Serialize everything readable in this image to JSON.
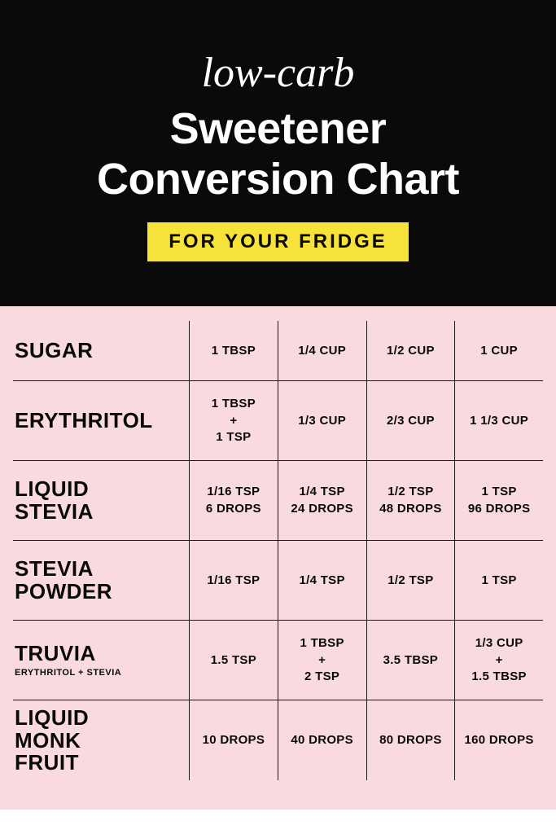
{
  "header": {
    "script_text": "low-carb",
    "title_line1": "Sweetener",
    "title_line2": "Conversion Chart",
    "badge": "FOR YOUR FRIDGE"
  },
  "colors": {
    "header_bg": "#0a0a0a",
    "header_text": "#ffffff",
    "badge_bg": "#f7e23a",
    "badge_text": "#0a0a0a",
    "chart_bg": "#f8dadf",
    "chart_text": "#0a0a0a",
    "border": "#1a1a1a"
  },
  "table": {
    "rows": [
      {
        "label": "SUGAR",
        "sublabel": null,
        "cells": [
          [
            "1 TBSP"
          ],
          [
            "1/4 CUP"
          ],
          [
            "1/2 CUP"
          ],
          [
            "1 CUP"
          ]
        ]
      },
      {
        "label": "ERYTHRITOL",
        "sublabel": null,
        "cells": [
          [
            "1 TBSP",
            "+",
            "1 TSP"
          ],
          [
            "1/3 CUP"
          ],
          [
            "2/3 CUP"
          ],
          [
            "1 1/3 CUP"
          ]
        ]
      },
      {
        "label": "LIQUID STEVIA",
        "sublabel": null,
        "cells": [
          [
            "1/16 TSP",
            "6 DROPS"
          ],
          [
            "1/4 TSP",
            "24 DROPS"
          ],
          [
            "1/2 TSP",
            "48 DROPS"
          ],
          [
            "1 TSP",
            "96 DROPS"
          ]
        ]
      },
      {
        "label": "STEVIA POWDER",
        "sublabel": null,
        "cells": [
          [
            "1/16 TSP"
          ],
          [
            "1/4 TSP"
          ],
          [
            "1/2 TSP"
          ],
          [
            "1 TSP"
          ]
        ]
      },
      {
        "label": "TRUVIA",
        "sublabel": "ERYTHRITOL + STEVIA",
        "cells": [
          [
            "1.5 TSP"
          ],
          [
            "1 TBSP",
            "+",
            "2 TSP"
          ],
          [
            "3.5 TBSP"
          ],
          [
            "1/3 CUP",
            "+",
            "1.5 TBSP"
          ]
        ]
      },
      {
        "label": "LIQUID MONK FRUIT",
        "sublabel": null,
        "cells": [
          [
            "10 DROPS"
          ],
          [
            "40 DROPS"
          ],
          [
            "80 DROPS"
          ],
          [
            "160 DROPS"
          ]
        ]
      }
    ]
  }
}
